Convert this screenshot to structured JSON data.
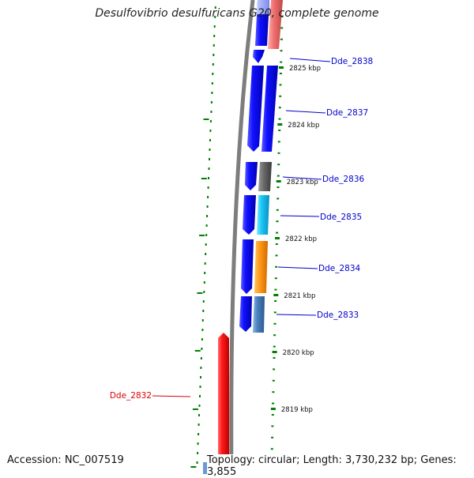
{
  "title": "Desulfovibrio desulfuricans G20, complete genome",
  "footer": {
    "accession": "Accession: NC_007519",
    "summary": "Topology: circular; Length: 3,730,232 bp; Genes: 3,855"
  },
  "colors": {
    "backbone": "#8a8a8a",
    "forward_strand": "#0000ee",
    "tick": "#008000",
    "label_link": "#0000cc",
    "label_highlight": "#dd0000"
  },
  "scale": {
    "ticks": [
      {
        "label": "2825 kbp"
      },
      {
        "label": "2824 kbp"
      },
      {
        "label": "2823 kbp"
      },
      {
        "label": "2822 kbp"
      },
      {
        "label": "2821 kbp"
      },
      {
        "label": "2820 kbp"
      },
      {
        "label": "2819 kbp"
      }
    ]
  },
  "genes": [
    {
      "name": "Dde_2838",
      "color": "#0000ee"
    },
    {
      "name": "Dde_2837",
      "color": "#0000ee"
    },
    {
      "name": "Dde_2836",
      "color": "#0000ee"
    },
    {
      "name": "Dde_2835",
      "color": "#0000ee"
    },
    {
      "name": "Dde_2834",
      "color": "#0000ee"
    },
    {
      "name": "Dde_2833",
      "color": "#0000ee"
    },
    {
      "name": "Dde_2832",
      "color": "#ff0000"
    }
  ]
}
